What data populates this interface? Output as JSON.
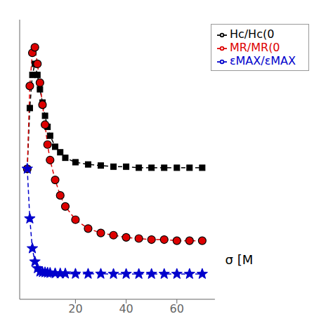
{
  "chart_data": {
    "type": "line",
    "x": [
      1,
      2,
      3,
      4,
      5,
      6,
      7,
      8,
      9,
      10,
      12,
      14,
      16,
      20,
      25,
      30,
      35,
      40,
      45,
      50,
      55,
      60,
      65,
      70
    ],
    "series": [
      {
        "name": "Hc/Hc(0",
        "color": "#000000",
        "marker": "square",
        "line_style": "dashed",
        "values": [
          1.0,
          1.55,
          1.85,
          1.95,
          1.85,
          1.72,
          1.6,
          1.48,
          1.38,
          1.3,
          1.2,
          1.15,
          1.1,
          1.06,
          1.04,
          1.03,
          1.02,
          1.02,
          1.01,
          1.01,
          1.01,
          1.01,
          1.01,
          1.01
        ]
      },
      {
        "name": "MR/MR(0",
        "color": "#dd0000",
        "marker": "circle",
        "line_style": "dashed",
        "values": [
          1.0,
          1.75,
          2.05,
          2.1,
          1.95,
          1.78,
          1.58,
          1.4,
          1.22,
          1.08,
          0.9,
          0.76,
          0.66,
          0.54,
          0.46,
          0.42,
          0.4,
          0.38,
          0.37,
          0.36,
          0.36,
          0.35,
          0.35,
          0.35
        ]
      },
      {
        "name": "εMAX/εMAX",
        "color": "#0000cc",
        "marker": "star",
        "line_style": "dashed",
        "values": [
          1.0,
          0.55,
          0.28,
          0.16,
          0.1,
          0.07,
          0.065,
          0.063,
          0.06,
          0.058,
          0.055,
          0.053,
          0.052,
          0.05,
          0.05,
          0.05,
          0.049,
          0.049,
          0.049,
          0.049,
          0.049,
          0.049,
          0.049,
          0.049
        ]
      }
    ],
    "xlim": [
      -2,
      75
    ],
    "xticks": [
      20,
      40,
      60
    ],
    "ylim": [
      -0.18,
      2.35
    ],
    "tick_labels": "x",
    "grid": false,
    "legend": "upper right",
    "annotations": [
      "σ [M"
    ]
  }
}
